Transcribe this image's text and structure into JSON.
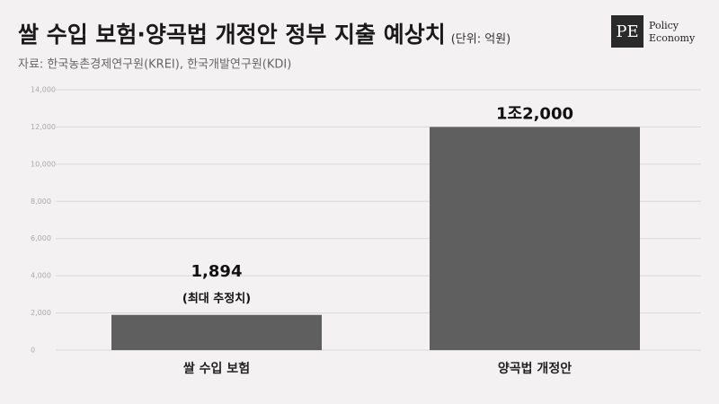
{
  "chart_data": {
    "type": "bar",
    "title": "쌀 수입 보험·양곡법 개정안 정부 지출 예상치",
    "unit": "(단위: 억원)",
    "source": "자료: 한국농촌경제연구원(KREI), 한국개발연구원(KDI)",
    "logo": {
      "mark": "PE",
      "lines": [
        "Policy",
        "Economy"
      ]
    },
    "categories": [
      "쌀 수입 보험",
      "양곡법 개정안"
    ],
    "values": [
      1894,
      12000
    ],
    "value_labels": [
      "1,894",
      "1조2,000"
    ],
    "annotation": "(최대 추정치)",
    "color": "#5f5f5f",
    "ylim": [
      0,
      14000
    ],
    "yticks": [
      0,
      {
        "value": 2000,
        "label": "2,000"
      },
      {
        "value": 4000,
        "label": "4,000"
      },
      {
        "value": 6000,
        "label": "6,000"
      },
      {
        "value": 8000,
        "label": "8,000"
      },
      {
        "value": 10000,
        "label": "10,000"
      },
      {
        "value": 12000,
        "label": "12,000"
      },
      {
        "value": 14000,
        "label": "14,000"
      }
    ],
    "grid": true
  }
}
